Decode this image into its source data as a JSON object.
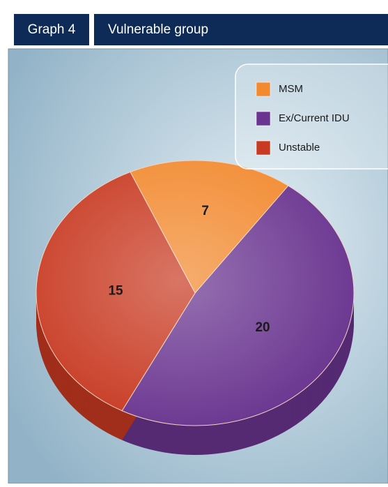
{
  "chart_data": {
    "type": "pie",
    "label": "Graph 4",
    "title": "Vulnerable group",
    "categories": [
      "MSM",
      "Ex/Current IDU",
      "Unstable"
    ],
    "values": [
      7,
      20,
      15
    ],
    "colors": [
      "#f28a30",
      "#6a3590",
      "#c83a22"
    ]
  }
}
